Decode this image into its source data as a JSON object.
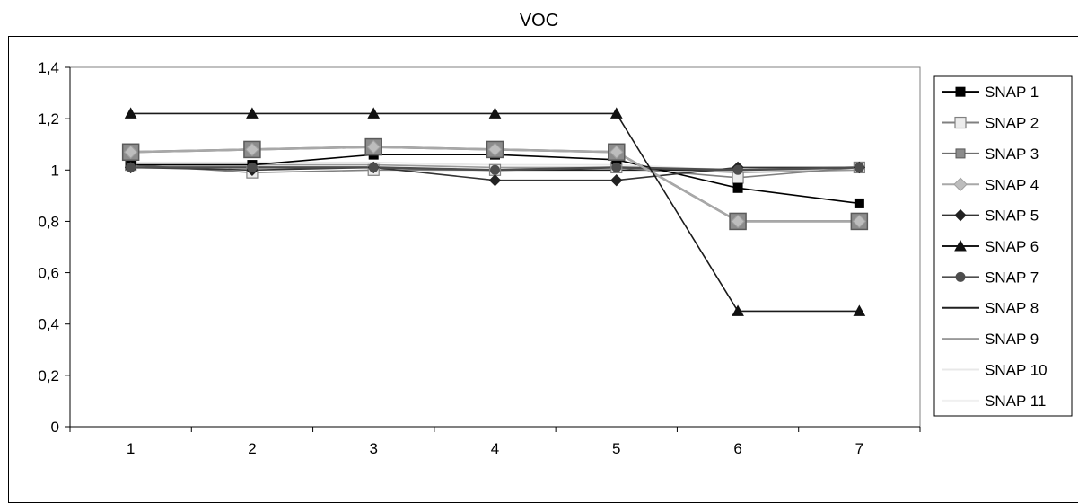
{
  "chart_data": {
    "type": "line",
    "title": "VOC",
    "xlabel": "",
    "ylabel": "",
    "x": [
      1,
      2,
      3,
      4,
      5,
      6,
      7
    ],
    "x_tick_labels": [
      "1",
      "2",
      "3",
      "4",
      "5",
      "6",
      "7"
    ],
    "ylim": [
      0,
      1.4
    ],
    "y_ticks": [
      0,
      0.2,
      0.4,
      0.6,
      0.8,
      1.0,
      1.2,
      1.4
    ],
    "y_tick_labels": [
      "0",
      "0,2",
      "0,4",
      "0,6",
      "0,8",
      "1",
      "1,2",
      "1,4"
    ],
    "grid": false,
    "legend_position": "right",
    "series": [
      {
        "name": "SNAP 1",
        "color": "#000000",
        "marker": "square-filled",
        "values": [
          1.02,
          1.02,
          1.06,
          1.06,
          1.04,
          0.93,
          0.87
        ]
      },
      {
        "name": "SNAP 2",
        "color": "#808080",
        "marker": "square-open",
        "values": [
          1.02,
          0.99,
          1.0,
          1.0,
          1.01,
          0.97,
          1.01
        ]
      },
      {
        "name": "SNAP 3",
        "color": "#6e6e6e",
        "marker": "square-gray",
        "values": [
          1.07,
          1.08,
          1.09,
          1.08,
          1.07,
          0.8,
          0.8
        ]
      },
      {
        "name": "SNAP 4",
        "color": "#a8a8a8",
        "marker": "diamond-gray",
        "values": [
          1.07,
          1.08,
          1.09,
          1.08,
          1.07,
          0.8,
          0.8
        ]
      },
      {
        "name": "SNAP 5",
        "color": "#333333",
        "marker": "diamond-filled",
        "values": [
          1.01,
          1.0,
          1.01,
          0.96,
          0.96,
          1.01,
          1.01
        ]
      },
      {
        "name": "SNAP 6",
        "color": "#1a1a1a",
        "marker": "triangle-filled",
        "values": [
          1.22,
          1.22,
          1.22,
          1.22,
          1.22,
          0.45,
          0.45
        ]
      },
      {
        "name": "SNAP 7",
        "color": "#4d4d4d",
        "marker": "circle-filled",
        "values": [
          1.01,
          1.01,
          1.01,
          1.0,
          1.01,
          1.0,
          1.01
        ]
      },
      {
        "name": "SNAP 8",
        "color": "#202020",
        "marker": "none",
        "values": [
          1.01,
          1.01,
          1.01,
          1.0,
          1.0,
          1.0,
          1.01
        ]
      },
      {
        "name": "SNAP 9",
        "color": "#999999",
        "marker": "none",
        "values": [
          1.02,
          1.02,
          1.02,
          1.01,
          1.01,
          0.99,
          1.0
        ]
      },
      {
        "name": "SNAP 10",
        "color": "#e8e8e8",
        "marker": "none",
        "values": [
          1.03,
          1.03,
          1.03,
          1.02,
          1.02,
          1.0,
          1.0
        ]
      },
      {
        "name": "SNAP 11",
        "color": "#f0f0f0",
        "marker": "none",
        "values": [
          1.02,
          1.02,
          1.02,
          1.02,
          1.02,
          1.0,
          1.0
        ]
      }
    ]
  }
}
